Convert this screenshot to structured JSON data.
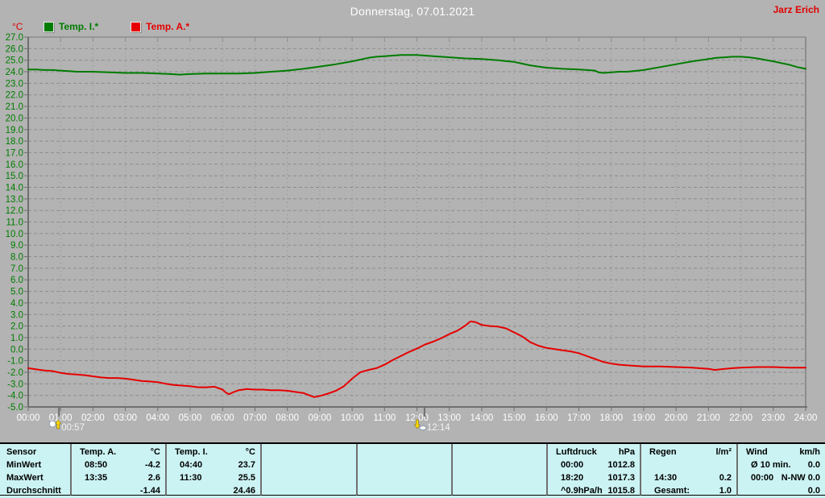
{
  "header": {
    "title": "Donnerstag, 07.01.2021",
    "user": "Jarz Erich"
  },
  "legend": [
    {
      "label": "Temp. I.*",
      "color": "#007c00"
    },
    {
      "label": "Temp. A.*",
      "color": "#e60000"
    }
  ],
  "colors": {
    "background": "#b3b3b3",
    "grid": "#8c8c8c",
    "axis_dark": "#6f6f6f",
    "axis_light": "#8c8c8c",
    "x_label": "#ffffff",
    "y_label": "#007c00",
    "table_background": "#ccf3f3",
    "accent_red": "#e00000"
  },
  "markers": [
    {
      "time": "00:57",
      "hour": 0.95,
      "type": "moonrise"
    },
    {
      "time": "12:14",
      "hour": 12.233,
      "type": "moonset"
    }
  ],
  "chart_data": {
    "type": "line",
    "title": "Donnerstag, 07.01.2021",
    "xlabel": "",
    "ylabel": "°C",
    "ylim": [
      -5,
      27
    ],
    "y_step": 1.0,
    "x_hours": [
      0,
      24
    ],
    "x_ticks": [
      "00:00",
      "01:00",
      "02:00",
      "03:00",
      "04:00",
      "05:00",
      "06:00",
      "07:00",
      "08:00",
      "09:00",
      "10:00",
      "11:00",
      "12:00",
      "13:00",
      "14:00",
      "15:00",
      "16:00",
      "17:00",
      "18:00",
      "19:00",
      "20:00",
      "21:00",
      "22:00",
      "23:00",
      "24:00"
    ],
    "grid": true,
    "legend_position": "top-left",
    "series": [
      {
        "name": "Temp. I.*",
        "color": "#007c00",
        "points": [
          [
            0,
            24.2
          ],
          [
            0.25,
            24.2
          ],
          [
            0.5,
            24.15
          ],
          [
            0.75,
            24.15
          ],
          [
            1,
            24.1
          ],
          [
            1.25,
            24.05
          ],
          [
            1.5,
            24.0
          ],
          [
            2,
            24.0
          ],
          [
            2.5,
            23.95
          ],
          [
            3,
            23.9
          ],
          [
            3.5,
            23.9
          ],
          [
            4,
            23.85
          ],
          [
            4.4,
            23.8
          ],
          [
            4.67,
            23.75
          ],
          [
            5,
            23.8
          ],
          [
            5.5,
            23.85
          ],
          [
            6,
            23.85
          ],
          [
            6.5,
            23.85
          ],
          [
            7,
            23.9
          ],
          [
            7.25,
            23.95
          ],
          [
            7.5,
            24.0
          ],
          [
            8,
            24.1
          ],
          [
            8.5,
            24.25
          ],
          [
            9,
            24.45
          ],
          [
            9.5,
            24.65
          ],
          [
            10,
            24.9
          ],
          [
            10.25,
            25.05
          ],
          [
            10.5,
            25.2
          ],
          [
            10.75,
            25.3
          ],
          [
            11,
            25.35
          ],
          [
            11.25,
            25.4
          ],
          [
            11.5,
            25.45
          ],
          [
            12,
            25.45
          ],
          [
            12.25,
            25.4
          ],
          [
            12.5,
            25.35
          ],
          [
            12.75,
            25.3
          ],
          [
            13,
            25.25
          ],
          [
            13.5,
            25.15
          ],
          [
            14,
            25.1
          ],
          [
            14.5,
            25.0
          ],
          [
            15,
            24.85
          ],
          [
            15.25,
            24.7
          ],
          [
            15.5,
            24.55
          ],
          [
            15.75,
            24.45
          ],
          [
            16,
            24.35
          ],
          [
            16.5,
            24.25
          ],
          [
            17,
            24.2
          ],
          [
            17.25,
            24.15
          ],
          [
            17.5,
            24.1
          ],
          [
            17.6,
            23.95
          ],
          [
            17.75,
            23.9
          ],
          [
            18,
            23.95
          ],
          [
            18.25,
            24.0
          ],
          [
            18.5,
            24.0
          ],
          [
            19,
            24.15
          ],
          [
            19.5,
            24.4
          ],
          [
            20,
            24.65
          ],
          [
            20.5,
            24.9
          ],
          [
            21,
            25.1
          ],
          [
            21.25,
            25.2
          ],
          [
            21.5,
            25.25
          ],
          [
            21.75,
            25.3
          ],
          [
            22,
            25.3
          ],
          [
            22.25,
            25.25
          ],
          [
            22.5,
            25.15
          ],
          [
            23,
            24.9
          ],
          [
            23.25,
            24.75
          ],
          [
            23.5,
            24.6
          ],
          [
            23.75,
            24.4
          ],
          [
            24,
            24.25
          ]
        ]
      },
      {
        "name": "Temp. A.*",
        "color": "#e60000",
        "points": [
          [
            0,
            -1.65
          ],
          [
            0.25,
            -1.75
          ],
          [
            0.5,
            -1.85
          ],
          [
            0.75,
            -1.9
          ],
          [
            1,
            -2.05
          ],
          [
            1.25,
            -2.15
          ],
          [
            1.5,
            -2.2
          ],
          [
            1.75,
            -2.25
          ],
          [
            2,
            -2.35
          ],
          [
            2.25,
            -2.45
          ],
          [
            2.5,
            -2.5
          ],
          [
            2.75,
            -2.5
          ],
          [
            3,
            -2.55
          ],
          [
            3.25,
            -2.65
          ],
          [
            3.5,
            -2.75
          ],
          [
            3.75,
            -2.8
          ],
          [
            4,
            -2.85
          ],
          [
            4.25,
            -3.0
          ],
          [
            4.5,
            -3.1
          ],
          [
            4.75,
            -3.15
          ],
          [
            5,
            -3.2
          ],
          [
            5.25,
            -3.3
          ],
          [
            5.5,
            -3.3
          ],
          [
            5.75,
            -3.25
          ],
          [
            6,
            -3.5
          ],
          [
            6.1,
            -3.75
          ],
          [
            6.2,
            -3.9
          ],
          [
            6.35,
            -3.7
          ],
          [
            6.5,
            -3.55
          ],
          [
            6.75,
            -3.45
          ],
          [
            7,
            -3.5
          ],
          [
            7.25,
            -3.5
          ],
          [
            7.5,
            -3.55
          ],
          [
            7.75,
            -3.55
          ],
          [
            8,
            -3.6
          ],
          [
            8.25,
            -3.7
          ],
          [
            8.5,
            -3.8
          ],
          [
            8.83,
            -4.15
          ],
          [
            9,
            -4.05
          ],
          [
            9.25,
            -3.85
          ],
          [
            9.5,
            -3.6
          ],
          [
            9.75,
            -3.2
          ],
          [
            10,
            -2.55
          ],
          [
            10.25,
            -2.0
          ],
          [
            10.5,
            -1.8
          ],
          [
            10.75,
            -1.65
          ],
          [
            11,
            -1.35
          ],
          [
            11.25,
            -0.95
          ],
          [
            11.5,
            -0.6
          ],
          [
            11.75,
            -0.25
          ],
          [
            12,
            0.05
          ],
          [
            12.25,
            0.4
          ],
          [
            12.5,
            0.65
          ],
          [
            12.75,
            0.95
          ],
          [
            13,
            1.3
          ],
          [
            13.25,
            1.6
          ],
          [
            13.5,
            2.05
          ],
          [
            13.65,
            2.4
          ],
          [
            13.8,
            2.35
          ],
          [
            14,
            2.1
          ],
          [
            14.25,
            2.0
          ],
          [
            14.5,
            1.95
          ],
          [
            14.75,
            1.8
          ],
          [
            15,
            1.45
          ],
          [
            15.25,
            1.1
          ],
          [
            15.5,
            0.6
          ],
          [
            15.75,
            0.3
          ],
          [
            16,
            0.1
          ],
          [
            16.25,
            0.0
          ],
          [
            16.5,
            -0.1
          ],
          [
            16.75,
            -0.2
          ],
          [
            17,
            -0.35
          ],
          [
            17.25,
            -0.6
          ],
          [
            17.5,
            -0.85
          ],
          [
            17.75,
            -1.1
          ],
          [
            18,
            -1.25
          ],
          [
            18.25,
            -1.35
          ],
          [
            18.5,
            -1.4
          ],
          [
            19,
            -1.5
          ],
          [
            19.5,
            -1.5
          ],
          [
            20,
            -1.55
          ],
          [
            20.5,
            -1.6
          ],
          [
            21,
            -1.7
          ],
          [
            21.2,
            -1.8
          ],
          [
            21.5,
            -1.7
          ],
          [
            21.75,
            -1.65
          ],
          [
            22,
            -1.6
          ],
          [
            22.5,
            -1.55
          ],
          [
            23,
            -1.55
          ],
          [
            23.5,
            -1.6
          ],
          [
            24,
            -1.6
          ]
        ]
      }
    ]
  },
  "table": {
    "row_labels": [
      "Sensor",
      "MinWert",
      "MaxWert",
      "Durchschnitt"
    ],
    "columns": [
      {
        "name": "Temp. A.",
        "unit": "°C",
        "rows": [
          [
            "08:50",
            "-4.2"
          ],
          [
            "13:35",
            "2.6"
          ],
          [
            "",
            "-1.44"
          ]
        ]
      },
      {
        "name": "Temp. I.",
        "unit": "°C",
        "rows": [
          [
            "04:40",
            "23.7"
          ],
          [
            "11:30",
            "25.5"
          ],
          [
            "",
            "24.46"
          ]
        ]
      },
      {
        "name": "",
        "unit": "",
        "rows": [
          [
            "",
            ""
          ],
          [
            "",
            ""
          ],
          [
            "",
            ""
          ]
        ]
      },
      {
        "name": "",
        "unit": "",
        "rows": [
          [
            "",
            ""
          ],
          [
            "",
            ""
          ],
          [
            "",
            ""
          ]
        ]
      },
      {
        "name": "",
        "unit": "",
        "rows": [
          [
            "",
            ""
          ],
          [
            "",
            ""
          ],
          [
            "",
            ""
          ]
        ]
      },
      {
        "name": "Luftdruck",
        "unit": "hPa",
        "rows": [
          [
            "00:00",
            "1012.8"
          ],
          [
            "18:20",
            "1017.3"
          ],
          [
            "^0.9hPa/h",
            "1015.8"
          ]
        ]
      },
      {
        "name": "Regen",
        "unit": "l/m²",
        "rows": [
          [
            "",
            ""
          ],
          [
            "14:30",
            "0.2"
          ],
          [
            "Gesamt:",
            "1.0"
          ]
        ]
      },
      {
        "name": "Wind",
        "unit": "km/h",
        "rows": [
          [
            "Ø 10 min.",
            "0.0"
          ],
          [
            "00:00",
            "N-NW 0.0"
          ],
          [
            "",
            "0.0"
          ]
        ]
      }
    ]
  }
}
